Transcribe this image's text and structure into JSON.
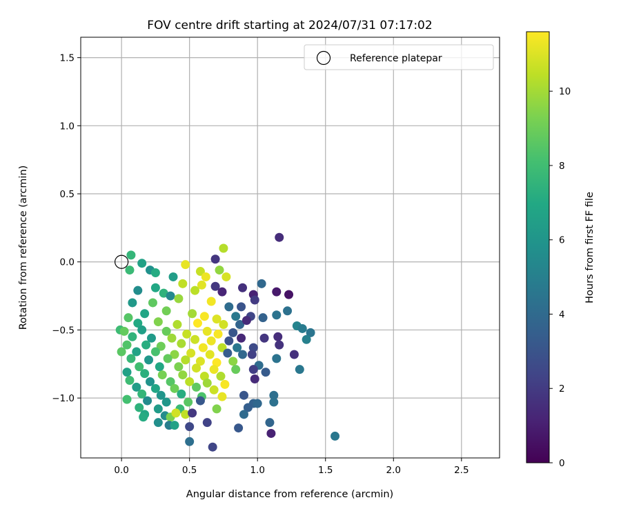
{
  "chart_data": {
    "type": "scatter",
    "title": "FOV centre drift starting at 2024/07/31 07:17:02",
    "xlabel": "Angular distance from reference (arcmin)",
    "ylabel": "Rotation from reference (arcmin)",
    "xlim": [
      -0.3,
      2.78
    ],
    "ylim": [
      -1.44,
      1.65
    ],
    "xticks": [
      "0.0",
      "0.5",
      "1.0",
      "1.5",
      "2.0",
      "2.5"
    ],
    "yticks": [
      "−1.0",
      "−0.5",
      "0.0",
      "0.5",
      "1.0",
      "1.5"
    ],
    "grid": true,
    "legend": {
      "position": "top-right",
      "entries": [
        "Reference platepar"
      ]
    },
    "reference_point": {
      "x": 0.0,
      "y": 0.0,
      "label": "Reference platepar"
    },
    "colorbar": {
      "label": "Hours from first FF file",
      "colormap": "viridis",
      "range": [
        0,
        11.6
      ],
      "ticks": [
        "0",
        "2",
        "4",
        "6",
        "8",
        "10"
      ]
    },
    "points": [
      {
        "x": 1.16,
        "y": 0.18,
        "h": 1.5
      },
      {
        "x": 0.75,
        "y": 0.1,
        "h": 10.3
      },
      {
        "x": 0.69,
        "y": 0.02,
        "h": 1.8
      },
      {
        "x": 0.07,
        "y": 0.05,
        "h": 7.6
      },
      {
        "x": 0.15,
        "y": -0.01,
        "h": 6.6
      },
      {
        "x": 0.47,
        "y": -0.02,
        "h": 11.2
      },
      {
        "x": 0.58,
        "y": -0.07,
        "h": 10.6
      },
      {
        "x": 0.72,
        "y": -0.06,
        "h": 9.7
      },
      {
        "x": 0.21,
        "y": -0.06,
        "h": 5.8
      },
      {
        "x": 0.06,
        "y": -0.06,
        "h": 7.8
      },
      {
        "x": 0.25,
        "y": -0.08,
        "h": 7.1
      },
      {
        "x": 0.38,
        "y": -0.11,
        "h": 6.4
      },
      {
        "x": 0.62,
        "y": -0.11,
        "h": 11.3
      },
      {
        "x": 0.77,
        "y": -0.11,
        "h": 10.9
      },
      {
        "x": 0.45,
        "y": -0.16,
        "h": 10.5
      },
      {
        "x": 0.59,
        "y": -0.17,
        "h": 11.1
      },
      {
        "x": 0.69,
        "y": -0.18,
        "h": 1.9
      },
      {
        "x": 0.74,
        "y": -0.22,
        "h": 1.2
      },
      {
        "x": 0.89,
        "y": -0.19,
        "h": 1.6
      },
      {
        "x": 1.03,
        "y": -0.16,
        "h": 3.9
      },
      {
        "x": 0.12,
        "y": -0.21,
        "h": 5.6
      },
      {
        "x": 0.25,
        "y": -0.19,
        "h": 6.9
      },
      {
        "x": 0.31,
        "y": -0.23,
        "h": 7.4
      },
      {
        "x": 0.54,
        "y": -0.21,
        "h": 10.4
      },
      {
        "x": 0.97,
        "y": -0.24,
        "h": 1.1
      },
      {
        "x": 1.14,
        "y": -0.22,
        "h": 0.8
      },
      {
        "x": 1.23,
        "y": -0.24,
        "h": 0.6
      },
      {
        "x": 0.98,
        "y": -0.28,
        "h": 2.0
      },
      {
        "x": 0.36,
        "y": -0.25,
        "h": 5.4
      },
      {
        "x": 0.42,
        "y": -0.27,
        "h": 9.8
      },
      {
        "x": 0.66,
        "y": -0.29,
        "h": 11.4
      },
      {
        "x": 0.23,
        "y": -0.3,
        "h": 8.7
      },
      {
        "x": 0.08,
        "y": -0.3,
        "h": 6.2
      },
      {
        "x": 0.79,
        "y": -0.33,
        "h": 4.1
      },
      {
        "x": 0.88,
        "y": -0.33,
        "h": 3.0
      },
      {
        "x": 1.22,
        "y": -0.36,
        "h": 4.3
      },
      {
        "x": 0.05,
        "y": -0.41,
        "h": 8.5
      },
      {
        "x": 0.17,
        "y": -0.38,
        "h": 6.8
      },
      {
        "x": 0.33,
        "y": -0.36,
        "h": 9.1
      },
      {
        "x": 0.52,
        "y": -0.38,
        "h": 10.0
      },
      {
        "x": 0.61,
        "y": -0.4,
        "h": 11.5
      },
      {
        "x": 0.7,
        "y": -0.42,
        "h": 11.0
      },
      {
        "x": 0.84,
        "y": -0.4,
        "h": 4.7
      },
      {
        "x": 0.95,
        "y": -0.4,
        "h": 2.4
      },
      {
        "x": 1.04,
        "y": -0.41,
        "h": 3.6
      },
      {
        "x": 1.14,
        "y": -0.39,
        "h": 4.4
      },
      {
        "x": 0.12,
        "y": -0.45,
        "h": 7.0
      },
      {
        "x": 0.27,
        "y": -0.44,
        "h": 9.4
      },
      {
        "x": 0.41,
        "y": -0.46,
        "h": 10.2
      },
      {
        "x": 0.56,
        "y": -0.45,
        "h": 11.6
      },
      {
        "x": 0.75,
        "y": -0.46,
        "h": 10.8
      },
      {
        "x": 0.87,
        "y": -0.46,
        "h": 3.7
      },
      {
        "x": 0.92,
        "y": -0.43,
        "h": 1.4
      },
      {
        "x": 1.29,
        "y": -0.47,
        "h": 5.2
      },
      {
        "x": 1.33,
        "y": -0.49,
        "h": 4.8
      },
      {
        "x": 1.39,
        "y": -0.52,
        "h": 4.5
      },
      {
        "x": -0.01,
        "y": -0.5,
        "h": 7.9
      },
      {
        "x": 0.02,
        "y": -0.51,
        "h": 8.8
      },
      {
        "x": 0.15,
        "y": -0.5,
        "h": 6.5
      },
      {
        "x": 0.33,
        "y": -0.51,
        "h": 8.9
      },
      {
        "x": 0.48,
        "y": -0.53,
        "h": 10.6
      },
      {
        "x": 0.63,
        "y": -0.51,
        "h": 11.2
      },
      {
        "x": 0.71,
        "y": -0.53,
        "h": 11.5
      },
      {
        "x": 0.82,
        "y": -0.52,
        "h": 3.1
      },
      {
        "x": 1.15,
        "y": -0.55,
        "h": 1.5
      },
      {
        "x": 1.36,
        "y": -0.57,
        "h": 5.0
      },
      {
        "x": 1.05,
        "y": -0.56,
        "h": 1.8
      },
      {
        "x": 0.08,
        "y": -0.55,
        "h": 7.5
      },
      {
        "x": 0.22,
        "y": -0.56,
        "h": 6.3
      },
      {
        "x": 0.37,
        "y": -0.56,
        "h": 9.9
      },
      {
        "x": 0.54,
        "y": -0.57,
        "h": 10.7
      },
      {
        "x": 0.66,
        "y": -0.58,
        "h": 11.3
      },
      {
        "x": 0.79,
        "y": -0.58,
        "h": 2.9
      },
      {
        "x": 0.88,
        "y": -0.56,
        "h": 1.3
      },
      {
        "x": 1.16,
        "y": -0.61,
        "h": 1.7
      },
      {
        "x": 0.04,
        "y": -0.61,
        "h": 8.4
      },
      {
        "x": 0.18,
        "y": -0.61,
        "h": 7.2
      },
      {
        "x": 0.29,
        "y": -0.62,
        "h": 9.0
      },
      {
        "x": 0.44,
        "y": -0.6,
        "h": 10.1
      },
      {
        "x": 0.6,
        "y": -0.63,
        "h": 11.4
      },
      {
        "x": 0.74,
        "y": -0.63,
        "h": 10.4
      },
      {
        "x": 0.85,
        "y": -0.63,
        "h": 4.6
      },
      {
        "x": 0.97,
        "y": -0.63,
        "h": 2.6
      },
      {
        "x": 0.0,
        "y": -0.66,
        "h": 8.6
      },
      {
        "x": 0.11,
        "y": -0.66,
        "h": 6.7
      },
      {
        "x": 0.25,
        "y": -0.66,
        "h": 8.2
      },
      {
        "x": 0.39,
        "y": -0.68,
        "h": 9.6
      },
      {
        "x": 0.51,
        "y": -0.67,
        "h": 10.9
      },
      {
        "x": 0.65,
        "y": -0.68,
        "h": 11.1
      },
      {
        "x": 0.78,
        "y": -0.67,
        "h": 3.4
      },
      {
        "x": 0.89,
        "y": -0.68,
        "h": 3.9
      },
      {
        "x": 0.96,
        "y": -0.68,
        "h": 2.2
      },
      {
        "x": 1.14,
        "y": -0.71,
        "h": 4.4
      },
      {
        "x": 1.27,
        "y": -0.68,
        "h": 1.6
      },
      {
        "x": 0.07,
        "y": -0.71,
        "h": 7.7
      },
      {
        "x": 0.2,
        "y": -0.72,
        "h": 6.1
      },
      {
        "x": 0.34,
        "y": -0.71,
        "h": 8.8
      },
      {
        "x": 0.47,
        "y": -0.72,
        "h": 10.3
      },
      {
        "x": 0.58,
        "y": -0.73,
        "h": 11.0
      },
      {
        "x": 0.7,
        "y": -0.74,
        "h": 11.6
      },
      {
        "x": 0.82,
        "y": -0.73,
        "h": 9.6
      },
      {
        "x": 1.01,
        "y": -0.76,
        "h": 4.1
      },
      {
        "x": 0.13,
        "y": -0.77,
        "h": 8.0
      },
      {
        "x": 0.28,
        "y": -0.77,
        "h": 6.9
      },
      {
        "x": 0.42,
        "y": -0.77,
        "h": 9.3
      },
      {
        "x": 0.55,
        "y": -0.78,
        "h": 10.8
      },
      {
        "x": 0.68,
        "y": -0.79,
        "h": 11.3
      },
      {
        "x": 0.84,
        "y": -0.79,
        "h": 8.9
      },
      {
        "x": 0.97,
        "y": -0.79,
        "h": 2.1
      },
      {
        "x": 1.06,
        "y": -0.81,
        "h": 3.3
      },
      {
        "x": 1.31,
        "y": -0.79,
        "h": 4.6
      },
      {
        "x": 0.04,
        "y": -0.81,
        "h": 6.6
      },
      {
        "x": 0.17,
        "y": -0.82,
        "h": 7.3
      },
      {
        "x": 0.3,
        "y": -0.83,
        "h": 9.2
      },
      {
        "x": 0.45,
        "y": -0.83,
        "h": 9.7
      },
      {
        "x": 0.61,
        "y": -0.84,
        "h": 10.5
      },
      {
        "x": 0.73,
        "y": -0.84,
        "h": 10.2
      },
      {
        "x": 0.06,
        "y": -0.87,
        "h": 7.9
      },
      {
        "x": 0.21,
        "y": -0.88,
        "h": 5.9
      },
      {
        "x": 0.36,
        "y": -0.88,
        "h": 8.5
      },
      {
        "x": 0.5,
        "y": -0.88,
        "h": 10.4
      },
      {
        "x": 0.63,
        "y": -0.89,
        "h": 9.9
      },
      {
        "x": 0.76,
        "y": -0.9,
        "h": 11.5
      },
      {
        "x": 0.98,
        "y": -0.86,
        "h": 1.4
      },
      {
        "x": 0.11,
        "y": -0.92,
        "h": 6.4
      },
      {
        "x": 0.25,
        "y": -0.93,
        "h": 6.8
      },
      {
        "x": 0.39,
        "y": -0.93,
        "h": 9.0
      },
      {
        "x": 0.55,
        "y": -0.92,
        "h": 8.7
      },
      {
        "x": 0.68,
        "y": -0.94,
        "h": 10.7
      },
      {
        "x": 0.15,
        "y": -0.97,
        "h": 7.6
      },
      {
        "x": 0.29,
        "y": -0.98,
        "h": 6.0
      },
      {
        "x": 0.44,
        "y": -0.97,
        "h": 7.2
      },
      {
        "x": 0.59,
        "y": -0.99,
        "h": 8.3
      },
      {
        "x": 0.74,
        "y": -0.99,
        "h": 11.2
      },
      {
        "x": 0.9,
        "y": -0.98,
        "h": 3.1
      },
      {
        "x": 1.12,
        "y": -0.98,
        "h": 4.2
      },
      {
        "x": 0.04,
        "y": -1.01,
        "h": 8.1
      },
      {
        "x": 0.19,
        "y": -1.02,
        "h": 5.5
      },
      {
        "x": 0.33,
        "y": -1.03,
        "h": 6.1
      },
      {
        "x": 0.49,
        "y": -1.03,
        "h": 8.6
      },
      {
        "x": 0.58,
        "y": -1.02,
        "h": 3.2
      },
      {
        "x": 0.97,
        "y": -1.04,
        "h": 3.6
      },
      {
        "x": 1.0,
        "y": -1.04,
        "h": 3.9
      },
      {
        "x": 1.12,
        "y": -1.03,
        "h": 4.3
      },
      {
        "x": 0.13,
        "y": -1.07,
        "h": 7.4
      },
      {
        "x": 0.27,
        "y": -1.08,
        "h": 6.3
      },
      {
        "x": 0.43,
        "y": -1.08,
        "h": 7.8
      },
      {
        "x": 0.7,
        "y": -1.08,
        "h": 9.4
      },
      {
        "x": 0.93,
        "y": -1.07,
        "h": 3.5
      },
      {
        "x": 0.17,
        "y": -1.12,
        "h": 6.9
      },
      {
        "x": 0.32,
        "y": -1.13,
        "h": 5.6
      },
      {
        "x": 0.47,
        "y": -1.12,
        "h": 10.5
      },
      {
        "x": 0.52,
        "y": -1.11,
        "h": 1.9
      },
      {
        "x": 0.9,
        "y": -1.12,
        "h": 4.0
      },
      {
        "x": 0.16,
        "y": -1.14,
        "h": 7.1
      },
      {
        "x": 0.36,
        "y": -1.14,
        "h": 9.3
      },
      {
        "x": 0.4,
        "y": -1.11,
        "h": 10.8
      },
      {
        "x": 0.27,
        "y": -1.18,
        "h": 5.7
      },
      {
        "x": 0.63,
        "y": -1.18,
        "h": 2.3
      },
      {
        "x": 1.09,
        "y": -1.18,
        "h": 3.8
      },
      {
        "x": 0.35,
        "y": -1.2,
        "h": 4.9
      },
      {
        "x": 0.5,
        "y": -1.21,
        "h": 2.5
      },
      {
        "x": 0.86,
        "y": -1.22,
        "h": 3.2
      },
      {
        "x": 1.1,
        "y": -1.26,
        "h": 1.1
      },
      {
        "x": 1.57,
        "y": -1.28,
        "h": 4.6
      },
      {
        "x": 0.5,
        "y": -1.32,
        "h": 4.2
      },
      {
        "x": 0.67,
        "y": -1.36,
        "h": 2.4
      },
      {
        "x": 0.39,
        "y": -1.2,
        "h": 6.6
      }
    ]
  }
}
